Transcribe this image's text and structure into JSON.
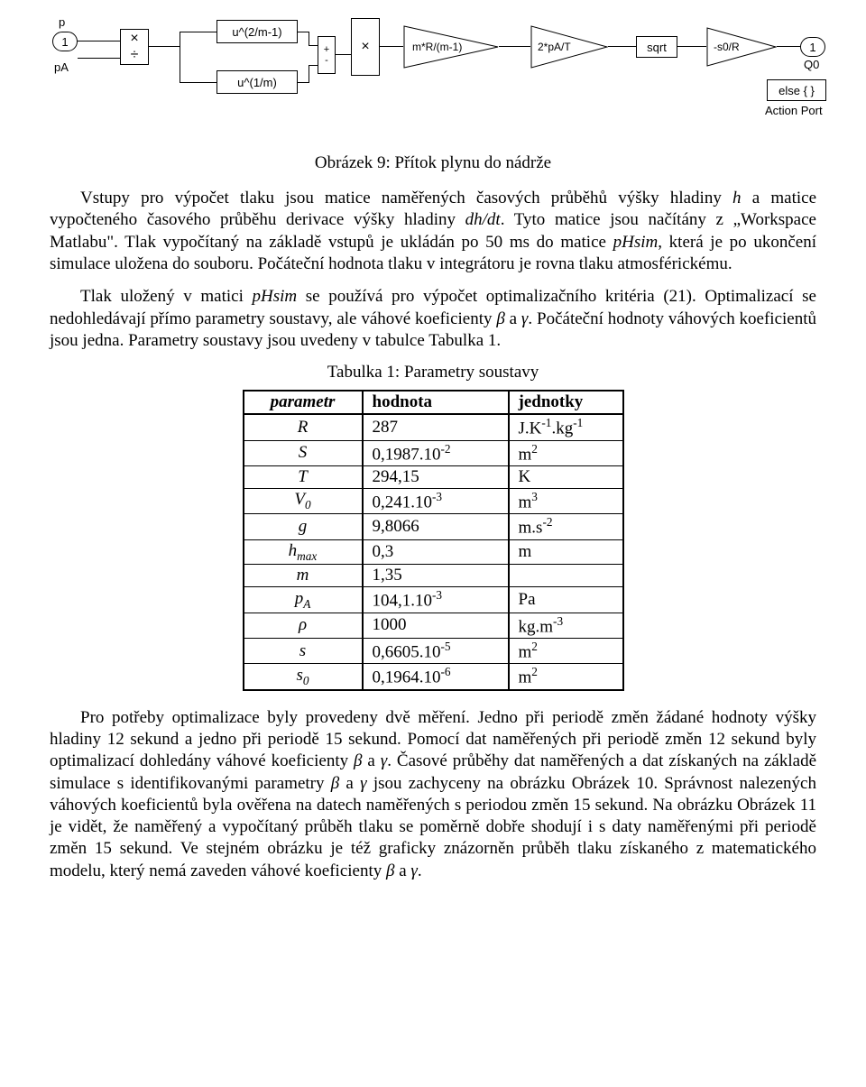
{
  "diagram": {
    "port_in_top": "1",
    "port_in_top_label": "p",
    "port_in_bot_label": "pA",
    "op_mul": "×",
    "op_div": "÷",
    "fn1": "u^(2/m-1)",
    "fn2": "u^(1/m)",
    "sum_plus": "+",
    "sum_minus": "-",
    "mul2": "×",
    "gain1": "m*R/(m-1)",
    "gain2": "2*pA/T",
    "sqrt": "sqrt",
    "gain3": "-s0/R",
    "port_out": "1",
    "port_out_label": "Q0",
    "else_box": "else { }",
    "action_port": "Action Port"
  },
  "fig_caption": "Obrázek 9: Přítok plynu do nádrže",
  "para1_a": "Vstupy pro výpočet tlaku jsou matice naměřených časových průběhů výšky hladiny ",
  "para1_h": "h",
  "para1_b": " a matice vypočteného časového průběhu derivace výšky hladiny ",
  "para1_dhdt": "dh/dt",
  "para1_c": ". Tyto matice jsou načítány z „Workspace Matlabu\". Tlak vypočítaný na základě vstupů je ukládán po 50 ms do matice ",
  "para1_ph": "pHsim",
  "para1_d": ", která je po ukončení simulace uložena do souboru. Počáteční hodnota tlaku v integrátoru je rovna tlaku atmosférickému.",
  "para2_a": "Tlak uložený v matici ",
  "para2_ph": "pHsim",
  "para2_b": " se používá pro výpočet optimalizačního kritéria (21). Optimalizací se nedohledávají přímo parametry soustavy, ale váhové koeficienty ",
  "para2_beta": "β",
  "para2_c": " a ",
  "para2_gamma": "γ",
  "para2_d": ". Počáteční hodnoty váhových koeficientů jsou jedna. Parametry soustavy jsou uvedeny v tabulce Tabulka 1.",
  "table_caption": "Tabulka 1: Parametry soustavy",
  "table": {
    "headers": [
      "parametr",
      "hodnota",
      "jednotky"
    ],
    "rows": [
      {
        "p": "R",
        "v": "287",
        "u_html": "J.K<span class='sup'>-1</span>.kg<span class='sup'>-1</span>"
      },
      {
        "p": "S",
        "v_html": "0,1987.10<span class='sup'>-2</span>",
        "u_html": "m<span class='sup'>2</span>"
      },
      {
        "p": "T",
        "v": "294,15",
        "u": "K"
      },
      {
        "p_html": "V<span class='sub'>0</span>",
        "v_html": "0,241.10<span class='sup'>-3</span>",
        "u_html": "m<span class='sup'>3</span>"
      },
      {
        "p": "g",
        "v": "9,8066",
        "u_html": "m.s<span class='sup'>-2</span>"
      },
      {
        "p_html": "h<span class='sub'>max</span>",
        "v": "0,3",
        "u": "m"
      },
      {
        "p": "m",
        "v": "1,35",
        "u": ""
      },
      {
        "p_html": "p<span class='sub'>A</span>",
        "v_html": "104,1.10<span class='sup'>-3</span>",
        "u": "Pa"
      },
      {
        "p": "ρ",
        "v": "1000",
        "u_html": "kg.m<span class='sup'>-3</span>"
      },
      {
        "p": "s",
        "v_html": "0,6605.10<span class='sup'>-5</span>",
        "u_html": "m<span class='sup'>2</span>"
      },
      {
        "p_html": "s<span class='sub'>0</span>",
        "v_html": "0,1964.10<span class='sup'>-6</span>",
        "u_html": "m<span class='sup'>2</span>"
      }
    ]
  },
  "para3_a": "Pro potřeby optimalizace byly provedeny dvě měření. Jedno při periodě změn žádané hodnoty výšky hladiny 12 sekund a jedno při periodě 15 sekund. Pomocí dat naměřených při periodě změn 12 sekund byly optimalizací dohledány váhové koeficienty ",
  "para3_beta": "β",
  "para3_b": " a ",
  "para3_gamma": "γ",
  "para3_c": ". Časové průběhy dat naměřených a dat získaných na základě simulace s identifikovanými parametry ",
  "para3_beta2": "β",
  "para3_d": " a ",
  "para3_gamma2": "γ",
  "para3_e": " jsou zachyceny na obrázku Obrázek 10. Správnost nalezených váhových koeficientů byla ověřena na datech naměřených s periodou změn 15 sekund. Na obrázku Obrázek 11 je vidět, že naměřený a vypočítaný průběh tlaku se poměrně dobře shodují i s daty naměřenými při periodě změn 15 sekund. Ve stejném obrázku je též graficky znázorněn průběh tlaku získaného z matematického modelu, který nemá zaveden váhové koeficienty ",
  "para3_beta3": "β",
  "para3_f": " a ",
  "para3_gamma3": "γ",
  "para3_g": "."
}
